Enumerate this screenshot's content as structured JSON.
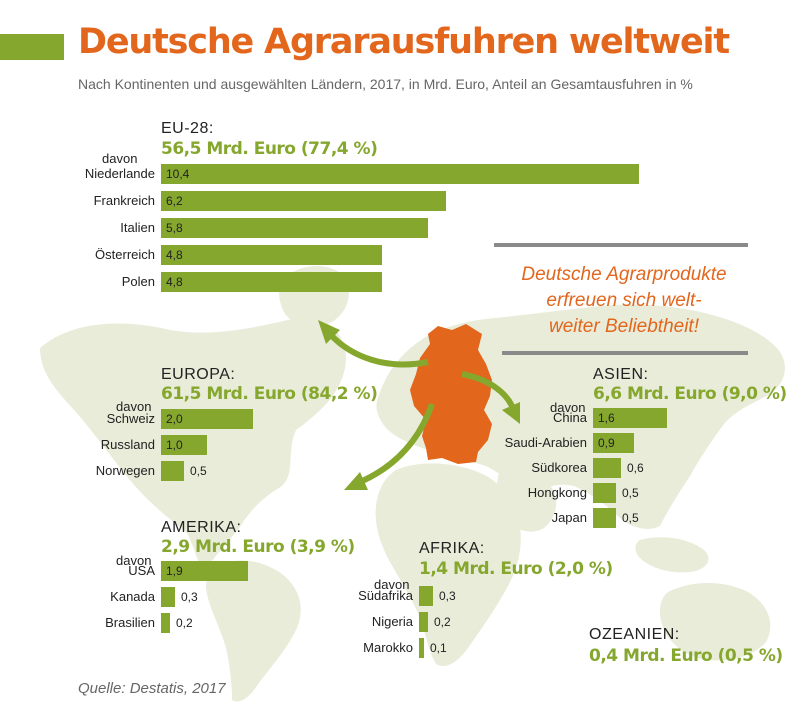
{
  "title": "Deutsche Agrarausfuhren weltweit",
  "subtitle": "Nach Kontinenten und ausgewählten Ländern, 2017, in Mrd. Euro, Anteil an Gesamtausfuhren in %",
  "source": "Quelle: Destatis, 2017",
  "callout": {
    "lines": [
      "Deutsche Agrarprodukte",
      "erfreuen sich welt-",
      "weiter Beliebtheit!"
    ]
  },
  "colors": {
    "bar": "#86a72e",
    "accent": "#e3661d",
    "map": "#e8ecd9",
    "rule": "#8a8a8a"
  },
  "chart_data": [
    {
      "type": "bar",
      "orientation": "horizontal",
      "region": "EU-28:",
      "total": "56,5 Mrd. Euro (77,4 %)",
      "davon": "davon",
      "categories": [
        "Niederlande",
        "Frankreich",
        "Italien",
        "Österreich",
        "Polen"
      ],
      "values": [
        10.4,
        6.2,
        5.8,
        4.8,
        4.8
      ],
      "labels": [
        "10,4",
        "6,2",
        "5,8",
        "4,8",
        "4,8"
      ]
    },
    {
      "type": "bar",
      "orientation": "horizontal",
      "region": "EUROPA:",
      "total": "61,5 Mrd. Euro (84,2 %)",
      "davon": "davon",
      "categories": [
        "Schweiz",
        "Russland",
        "Norwegen"
      ],
      "values": [
        2.0,
        1.0,
        0.5
      ],
      "labels": [
        "2,0",
        "1,0",
        "0,5"
      ]
    },
    {
      "type": "bar",
      "orientation": "horizontal",
      "region": "AMERIKA:",
      "total": "2,9 Mrd. Euro (3,9 %)",
      "davon": "davon",
      "categories": [
        "USA",
        "Kanada",
        "Brasilien"
      ],
      "values": [
        1.9,
        0.3,
        0.2
      ],
      "labels": [
        "1,9",
        "0,3",
        "0,2"
      ]
    },
    {
      "type": "bar",
      "orientation": "horizontal",
      "region": "AFRIKA:",
      "total": "1,4 Mrd. Euro (2,0 %)",
      "davon": "davon",
      "categories": [
        "Südafrika",
        "Nigeria",
        "Marokko"
      ],
      "values": [
        0.3,
        0.2,
        0.1
      ],
      "labels": [
        "0,3",
        "0,2",
        "0,1"
      ]
    },
    {
      "type": "bar",
      "orientation": "horizontal",
      "region": "ASIEN:",
      "total": "6,6 Mrd. Euro (9,0 %)",
      "davon": "davon",
      "categories": [
        "China",
        "Saudi-Arabien",
        "Südkorea",
        "Hongkong",
        "Japan"
      ],
      "values": [
        1.6,
        0.9,
        0.6,
        0.5,
        0.5
      ],
      "labels": [
        "1,6",
        "0,9",
        "0,6",
        "0,5",
        "0,5"
      ]
    },
    {
      "type": "bar",
      "orientation": "horizontal",
      "region": "OZEANIEN:",
      "total": "0,4 Mrd. Euro (0,5 %)",
      "categories": [],
      "values": [],
      "labels": []
    }
  ]
}
